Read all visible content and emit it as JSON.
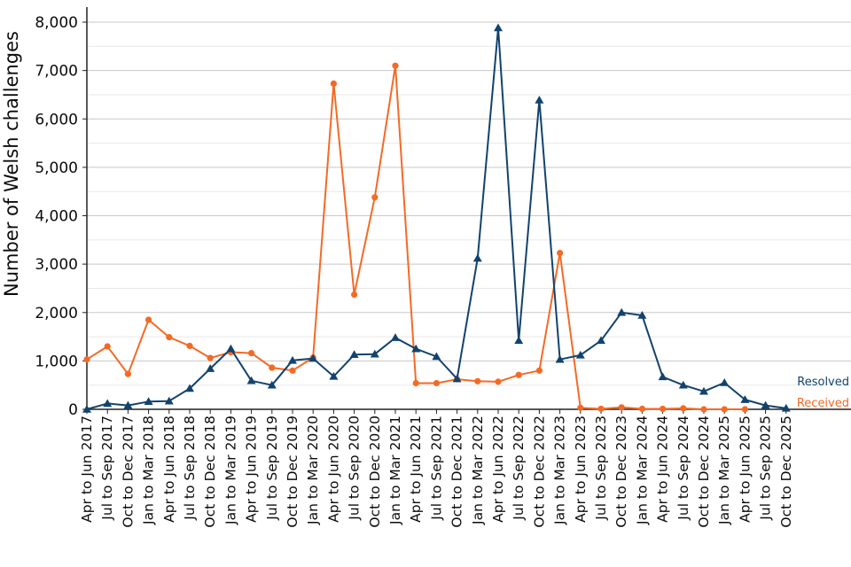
{
  "chart_data": {
    "type": "line",
    "ylabel": "Number of Welsh challenges",
    "xlabel": "",
    "title": "",
    "ylim": [
      0,
      8000
    ],
    "yticks": [
      0,
      1000,
      2000,
      3000,
      4000,
      5000,
      6000,
      7000,
      8000
    ],
    "ytick_labels": [
      "0",
      "1,000",
      "2,000",
      "3,000",
      "4,000",
      "5,000",
      "6,000",
      "7,000",
      "8,000"
    ],
    "grid": true,
    "categories": [
      "Apr to Jun 2017",
      "Jul to Sep 2017",
      "Oct to Dec 2017",
      "Jan to Mar 2018",
      "Apr to Jun 2018",
      "Jul to Sep 2018",
      "Oct to Dec 2018",
      "Jan to Mar 2019",
      "Apr to Jun 2019",
      "Jul to Sep 2019",
      "Oct to Dec 2019",
      "Jan to Mar 2020",
      "Apr to Jun 2020",
      "Jul to Sep 2020",
      "Oct to Dec 2020",
      "Jan to Mar 2021",
      "Apr to Jun 2021",
      "Jul to Sep 2021",
      "Oct to Dec 2021",
      "Jan to Mar 2022",
      "Apr to Jun 2022",
      "Jul to Sep 2022",
      "Oct to Dec 2022",
      "Jan to Mar 2023",
      "Apr to Jun 2023",
      "Jul to Sep 2023",
      "Oct to Dec 2023",
      "Jan to Mar 2024",
      "Apr to Jun 2024",
      "Jul to Sep 2024",
      "Oct to Dec 2024",
      "Jan to Mar 2025",
      "Apr to Jun 2025",
      "Jul to Sep 2025",
      "Oct to Dec 2025"
    ],
    "series": [
      {
        "name": "Received",
        "color": "#f46a25",
        "marker": "circle",
        "values": [
          1030,
          1300,
          730,
          1850,
          1490,
          1310,
          1060,
          1180,
          1160,
          860,
          800,
          1070,
          6730,
          2370,
          4380,
          7100,
          540,
          540,
          620,
          580,
          570,
          710,
          800,
          3230,
          30,
          10,
          40,
          10,
          10,
          20,
          0,
          0,
          0,
          null,
          null
        ]
      },
      {
        "name": "Resolved",
        "color": "#12436d",
        "marker": "triangle",
        "values": [
          0,
          120,
          80,
          160,
          170,
          430,
          840,
          1250,
          590,
          500,
          1010,
          1050,
          680,
          1130,
          1140,
          1480,
          1250,
          1090,
          630,
          3120,
          7880,
          1420,
          6390,
          1030,
          1120,
          1420,
          2000,
          1940,
          670,
          500,
          370,
          550,
          200,
          80,
          20
        ]
      }
    ]
  }
}
